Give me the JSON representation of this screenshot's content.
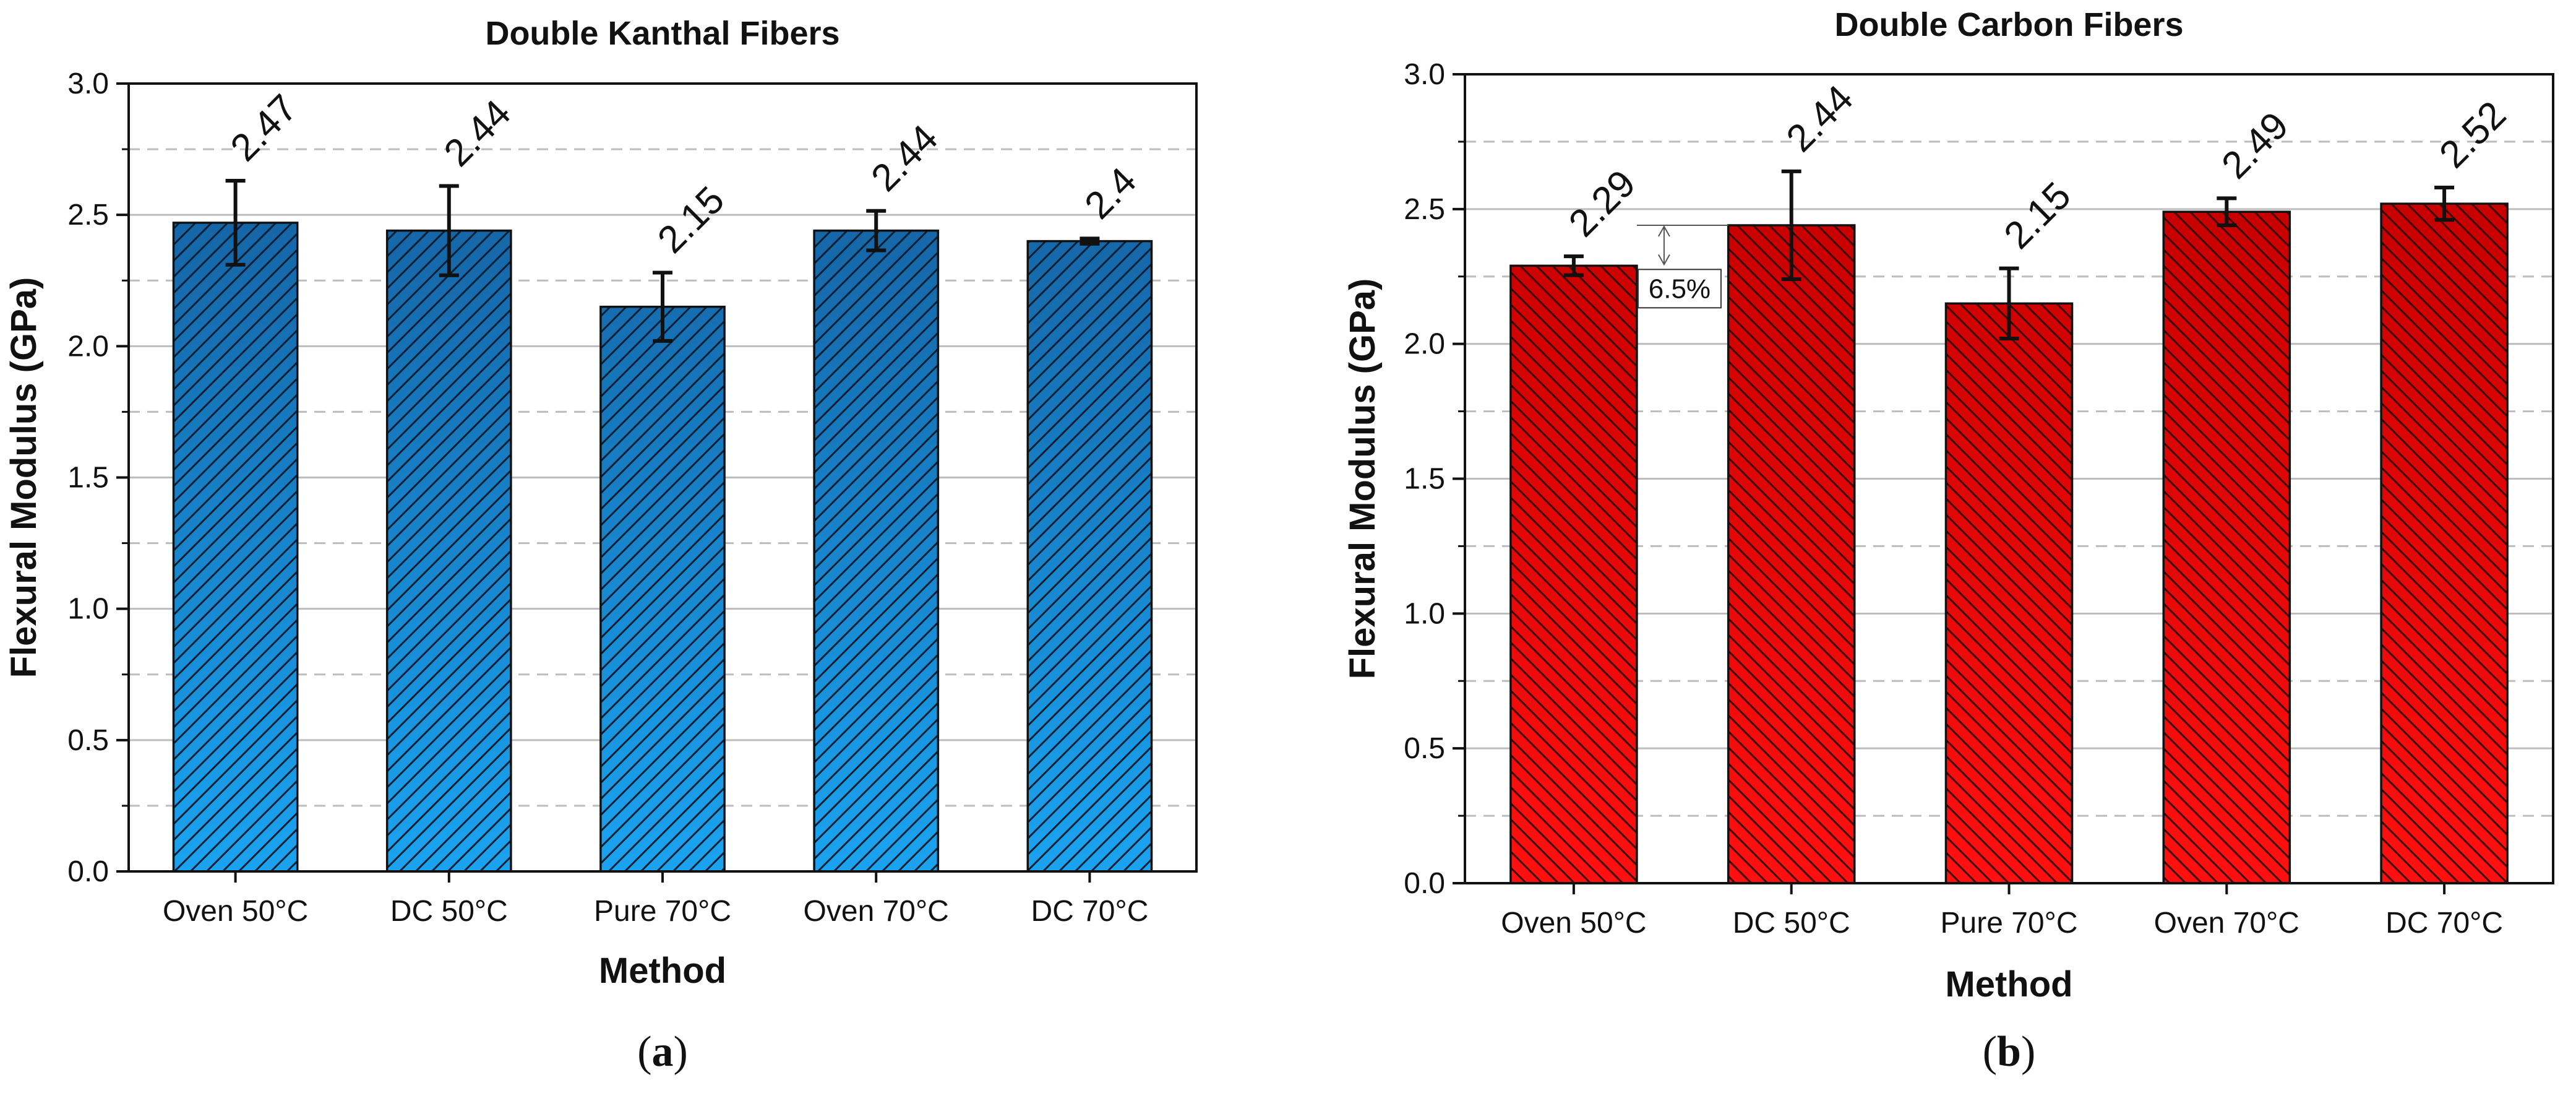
{
  "chart_data": [
    {
      "type": "bar",
      "title": "Double Kanthal  Fibers",
      "xlabel": "Method",
      "ylabel": "Flexural Modulus (GPa)",
      "ylim": [
        0,
        3.0
      ],
      "yticks": [
        0.0,
        0.5,
        1.0,
        1.5,
        2.0,
        2.5,
        3.0
      ],
      "ytick_labels": [
        "0.0",
        "0.5",
        "1.0",
        "1.5",
        "2.0",
        "2.5",
        "3.0"
      ],
      "categories": [
        "Oven 50°C",
        "DC 50°C",
        "Pure 70°C",
        "Oven 70°C",
        "DC 70°C"
      ],
      "values": [
        2.47,
        2.44,
        2.15,
        2.44,
        2.4
      ],
      "value_labels": [
        "2.47",
        "2.44",
        "2.15",
        "2.44",
        "2.4"
      ],
      "errors": [
        0.16,
        0.17,
        0.13,
        0.075,
        0.01
      ],
      "grid": "major solid, minor dashed",
      "bar_color_top": "#1565a6",
      "bar_color_bottom": "#1aa3f0",
      "hatch": "forward diagonal",
      "panel_label_open": "(",
      "panel_label": "a",
      "panel_label_close": ")"
    },
    {
      "type": "bar",
      "title": "Double Carbon Fibers",
      "xlabel": "Method",
      "ylabel": "Flexural Modulus (GPa)",
      "ylim": [
        0,
        3.0
      ],
      "yticks": [
        0.0,
        0.5,
        1.0,
        1.5,
        2.0,
        2.5,
        3.0
      ],
      "ytick_labels": [
        "0.0",
        "0.5",
        "1.0",
        "1.5",
        "2.0",
        "2.5",
        "3.0"
      ],
      "categories": [
        "Oven 50°C",
        "DC 50°C",
        "Pure 70°C",
        "Oven 70°C",
        "DC 70°C"
      ],
      "values": [
        2.29,
        2.44,
        2.15,
        2.49,
        2.52
      ],
      "value_labels": [
        "2.29",
        "2.44",
        "2.15",
        "2.49",
        "2.52"
      ],
      "errors": [
        0.035,
        0.2,
        0.13,
        0.05,
        0.06
      ],
      "grid": "major solid, minor dashed",
      "bar_color_top": "#c80000",
      "bar_color_bottom": "#ff1010",
      "hatch": "back diagonal",
      "annotation": {
        "text": "6.5%",
        "from_value": 2.29,
        "to_value": 2.44
      },
      "panel_label_open": "(",
      "panel_label": "b",
      "panel_label_close": ")"
    }
  ]
}
